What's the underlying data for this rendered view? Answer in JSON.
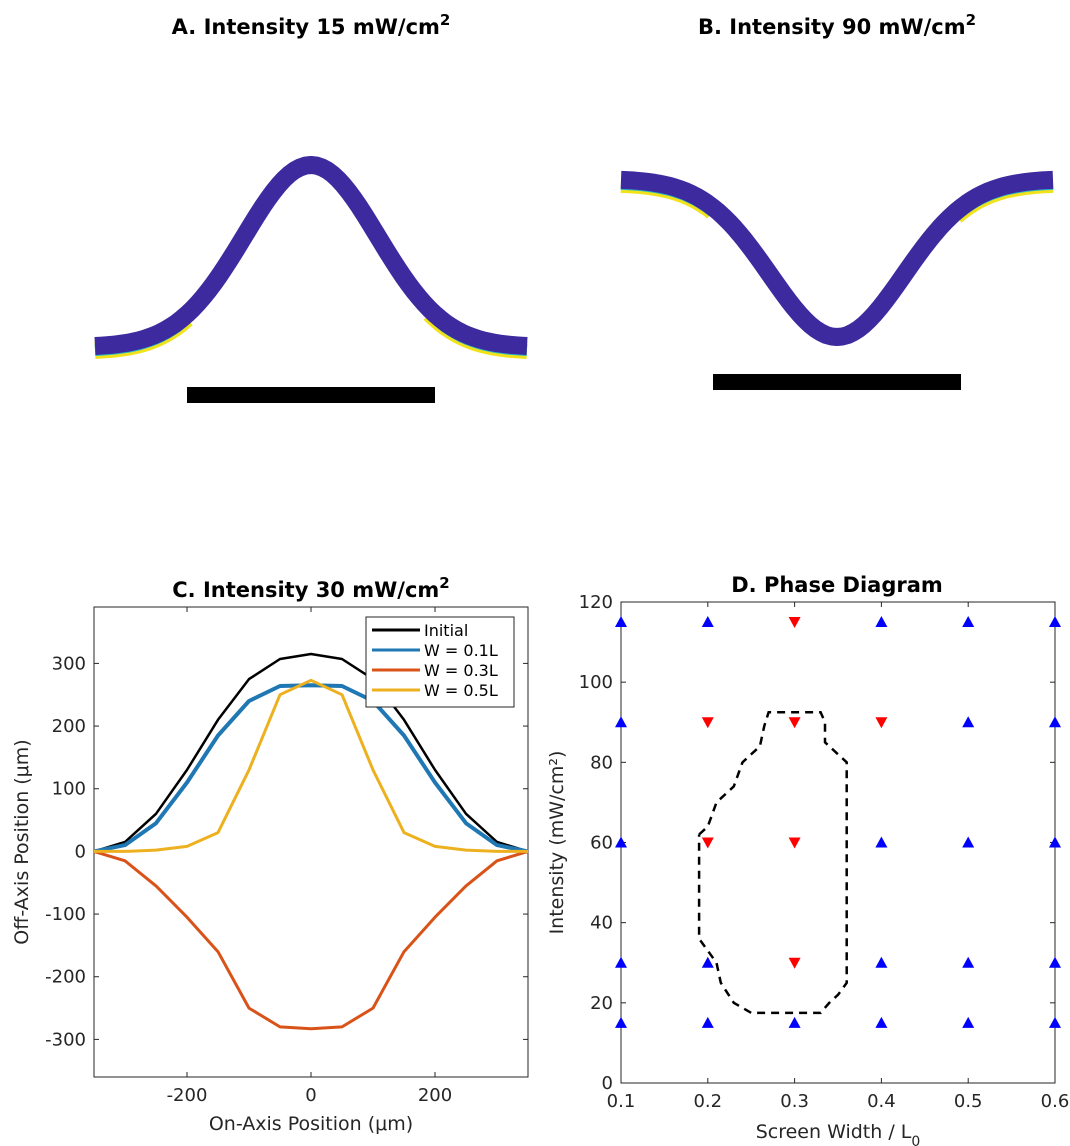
{
  "panels": {
    "a": {
      "title": "A. Intensity 15 mW/cm",
      "title_sup": "2",
      "bend": "up"
    },
    "b": {
      "title": "B. Intensity 90 mW/cm",
      "title_sup": "2",
      "bend": "down"
    },
    "c": {
      "title": "C. Intensity 30 mW/cm",
      "title_sup": "2"
    },
    "d": {
      "title": "D. Phase Diagram"
    }
  },
  "colors": {
    "strip": "#3d2a9e",
    "tip_cyan": "#2bb8c9",
    "tip_yellow": "#f2e21a",
    "scale_bar": "#000000",
    "initial": "#000000",
    "w01": "#1f77b4",
    "w03": "#d95319",
    "w05": "#edb120",
    "marker_up": "#0000ff",
    "marker_down": "#ff0000"
  },
  "chart_data": [
    {
      "type": "line",
      "title": "C. Intensity 30 mW/cm²",
      "xlabel": "On-Axis Position (μm)",
      "ylabel": "Off-Axis Position (μm)",
      "xlim": [
        -350,
        350
      ],
      "ylim": [
        -360,
        390
      ],
      "xticks": [
        -200,
        0,
        200
      ],
      "yticks": [
        -300,
        -200,
        -100,
        0,
        100,
        200,
        300
      ],
      "legend_position": "top-right",
      "series": [
        {
          "name": "Initial",
          "x": [
            -350,
            -300,
            -250,
            -200,
            -150,
            -100,
            -50,
            0,
            50,
            100,
            150,
            200,
            250,
            300,
            350
          ],
          "y": [
            0,
            15,
            60,
            130,
            210,
            275,
            307,
            315,
            307,
            275,
            210,
            130,
            60,
            15,
            0
          ]
        },
        {
          "name": "W = 0.1L",
          "x": [
            -350,
            -300,
            -250,
            -200,
            -150,
            -100,
            -50,
            0,
            50,
            100,
            150,
            200,
            250,
            300,
            350
          ],
          "y": [
            0,
            10,
            45,
            110,
            185,
            240,
            264,
            265,
            264,
            240,
            185,
            110,
            45,
            10,
            0
          ]
        },
        {
          "name": "W = 0.3L",
          "x": [
            -350,
            -300,
            -250,
            -200,
            -150,
            -100,
            -50,
            0,
            50,
            100,
            150,
            200,
            250,
            300,
            350
          ],
          "y": [
            0,
            -15,
            -55,
            -105,
            -160,
            -250,
            -280,
            -283,
            -280,
            -250,
            -160,
            -105,
            -55,
            -15,
            0
          ]
        },
        {
          "name": "W = 0.5L",
          "x": [
            -350,
            -300,
            -250,
            -200,
            -150,
            -100,
            -50,
            0,
            50,
            100,
            150,
            200,
            250,
            300,
            350
          ],
          "y": [
            0,
            0,
            2,
            8,
            30,
            130,
            250,
            273,
            250,
            130,
            30,
            8,
            2,
            0,
            0
          ]
        }
      ]
    },
    {
      "type": "scatter",
      "title": "D. Phase Diagram",
      "xlabel": "Screen Width / L",
      "xlabel_sub": "0",
      "ylabel": "Intensity (mW/cm²)",
      "xlim": [
        0.1,
        0.6
      ],
      "ylim": [
        0,
        120
      ],
      "xticks": [
        0.1,
        0.2,
        0.3,
        0.4,
        0.5,
        0.6
      ],
      "yticks": [
        0,
        20,
        40,
        60,
        80,
        100,
        120
      ],
      "x_tick_labels": [
        "0.1",
        "0.2",
        "0.3",
        "0.4",
        "0.5",
        "0.6"
      ],
      "y_tick_labels": [
        "0",
        "20",
        "40",
        "60",
        "80",
        "100",
        "120"
      ],
      "series": [
        {
          "marker": "triangle-up",
          "points": [
            [
              0.1,
              15
            ],
            [
              0.2,
              15
            ],
            [
              0.3,
              15
            ],
            [
              0.4,
              15
            ],
            [
              0.5,
              15
            ],
            [
              0.6,
              15
            ],
            [
              0.1,
              30
            ],
            [
              0.2,
              30
            ],
            [
              0.4,
              30
            ],
            [
              0.5,
              30
            ],
            [
              0.6,
              30
            ],
            [
              0.1,
              60
            ],
            [
              0.4,
              60
            ],
            [
              0.5,
              60
            ],
            [
              0.6,
              60
            ],
            [
              0.1,
              90
            ],
            [
              0.5,
              90
            ],
            [
              0.6,
              90
            ],
            [
              0.1,
              115
            ],
            [
              0.2,
              115
            ],
            [
              0.4,
              115
            ],
            [
              0.5,
              115
            ],
            [
              0.6,
              115
            ]
          ]
        },
        {
          "marker": "triangle-down",
          "points": [
            [
              0.3,
              30
            ],
            [
              0.2,
              60
            ],
            [
              0.3,
              60
            ],
            [
              0.2,
              90
            ],
            [
              0.3,
              90
            ],
            [
              0.4,
              90
            ],
            [
              0.3,
              115
            ]
          ]
        }
      ],
      "boundary": [
        [
          0.19,
          62
        ],
        [
          0.2,
          64
        ],
        [
          0.21,
          70
        ],
        [
          0.23,
          74
        ],
        [
          0.24,
          80
        ],
        [
          0.26,
          84
        ],
        [
          0.265,
          89
        ],
        [
          0.27,
          92.5
        ],
        [
          0.33,
          92.5
        ],
        [
          0.335,
          90
        ],
        [
          0.335,
          85
        ],
        [
          0.36,
          80
        ],
        [
          0.36,
          25
        ],
        [
          0.35,
          22
        ],
        [
          0.34,
          20
        ],
        [
          0.33,
          17.5
        ],
        [
          0.25,
          17.5
        ],
        [
          0.23,
          20
        ],
        [
          0.215,
          25
        ],
        [
          0.21,
          30
        ],
        [
          0.2,
          33
        ],
        [
          0.19,
          36
        ],
        [
          0.19,
          55
        ],
        [
          0.19,
          62
        ]
      ]
    }
  ]
}
